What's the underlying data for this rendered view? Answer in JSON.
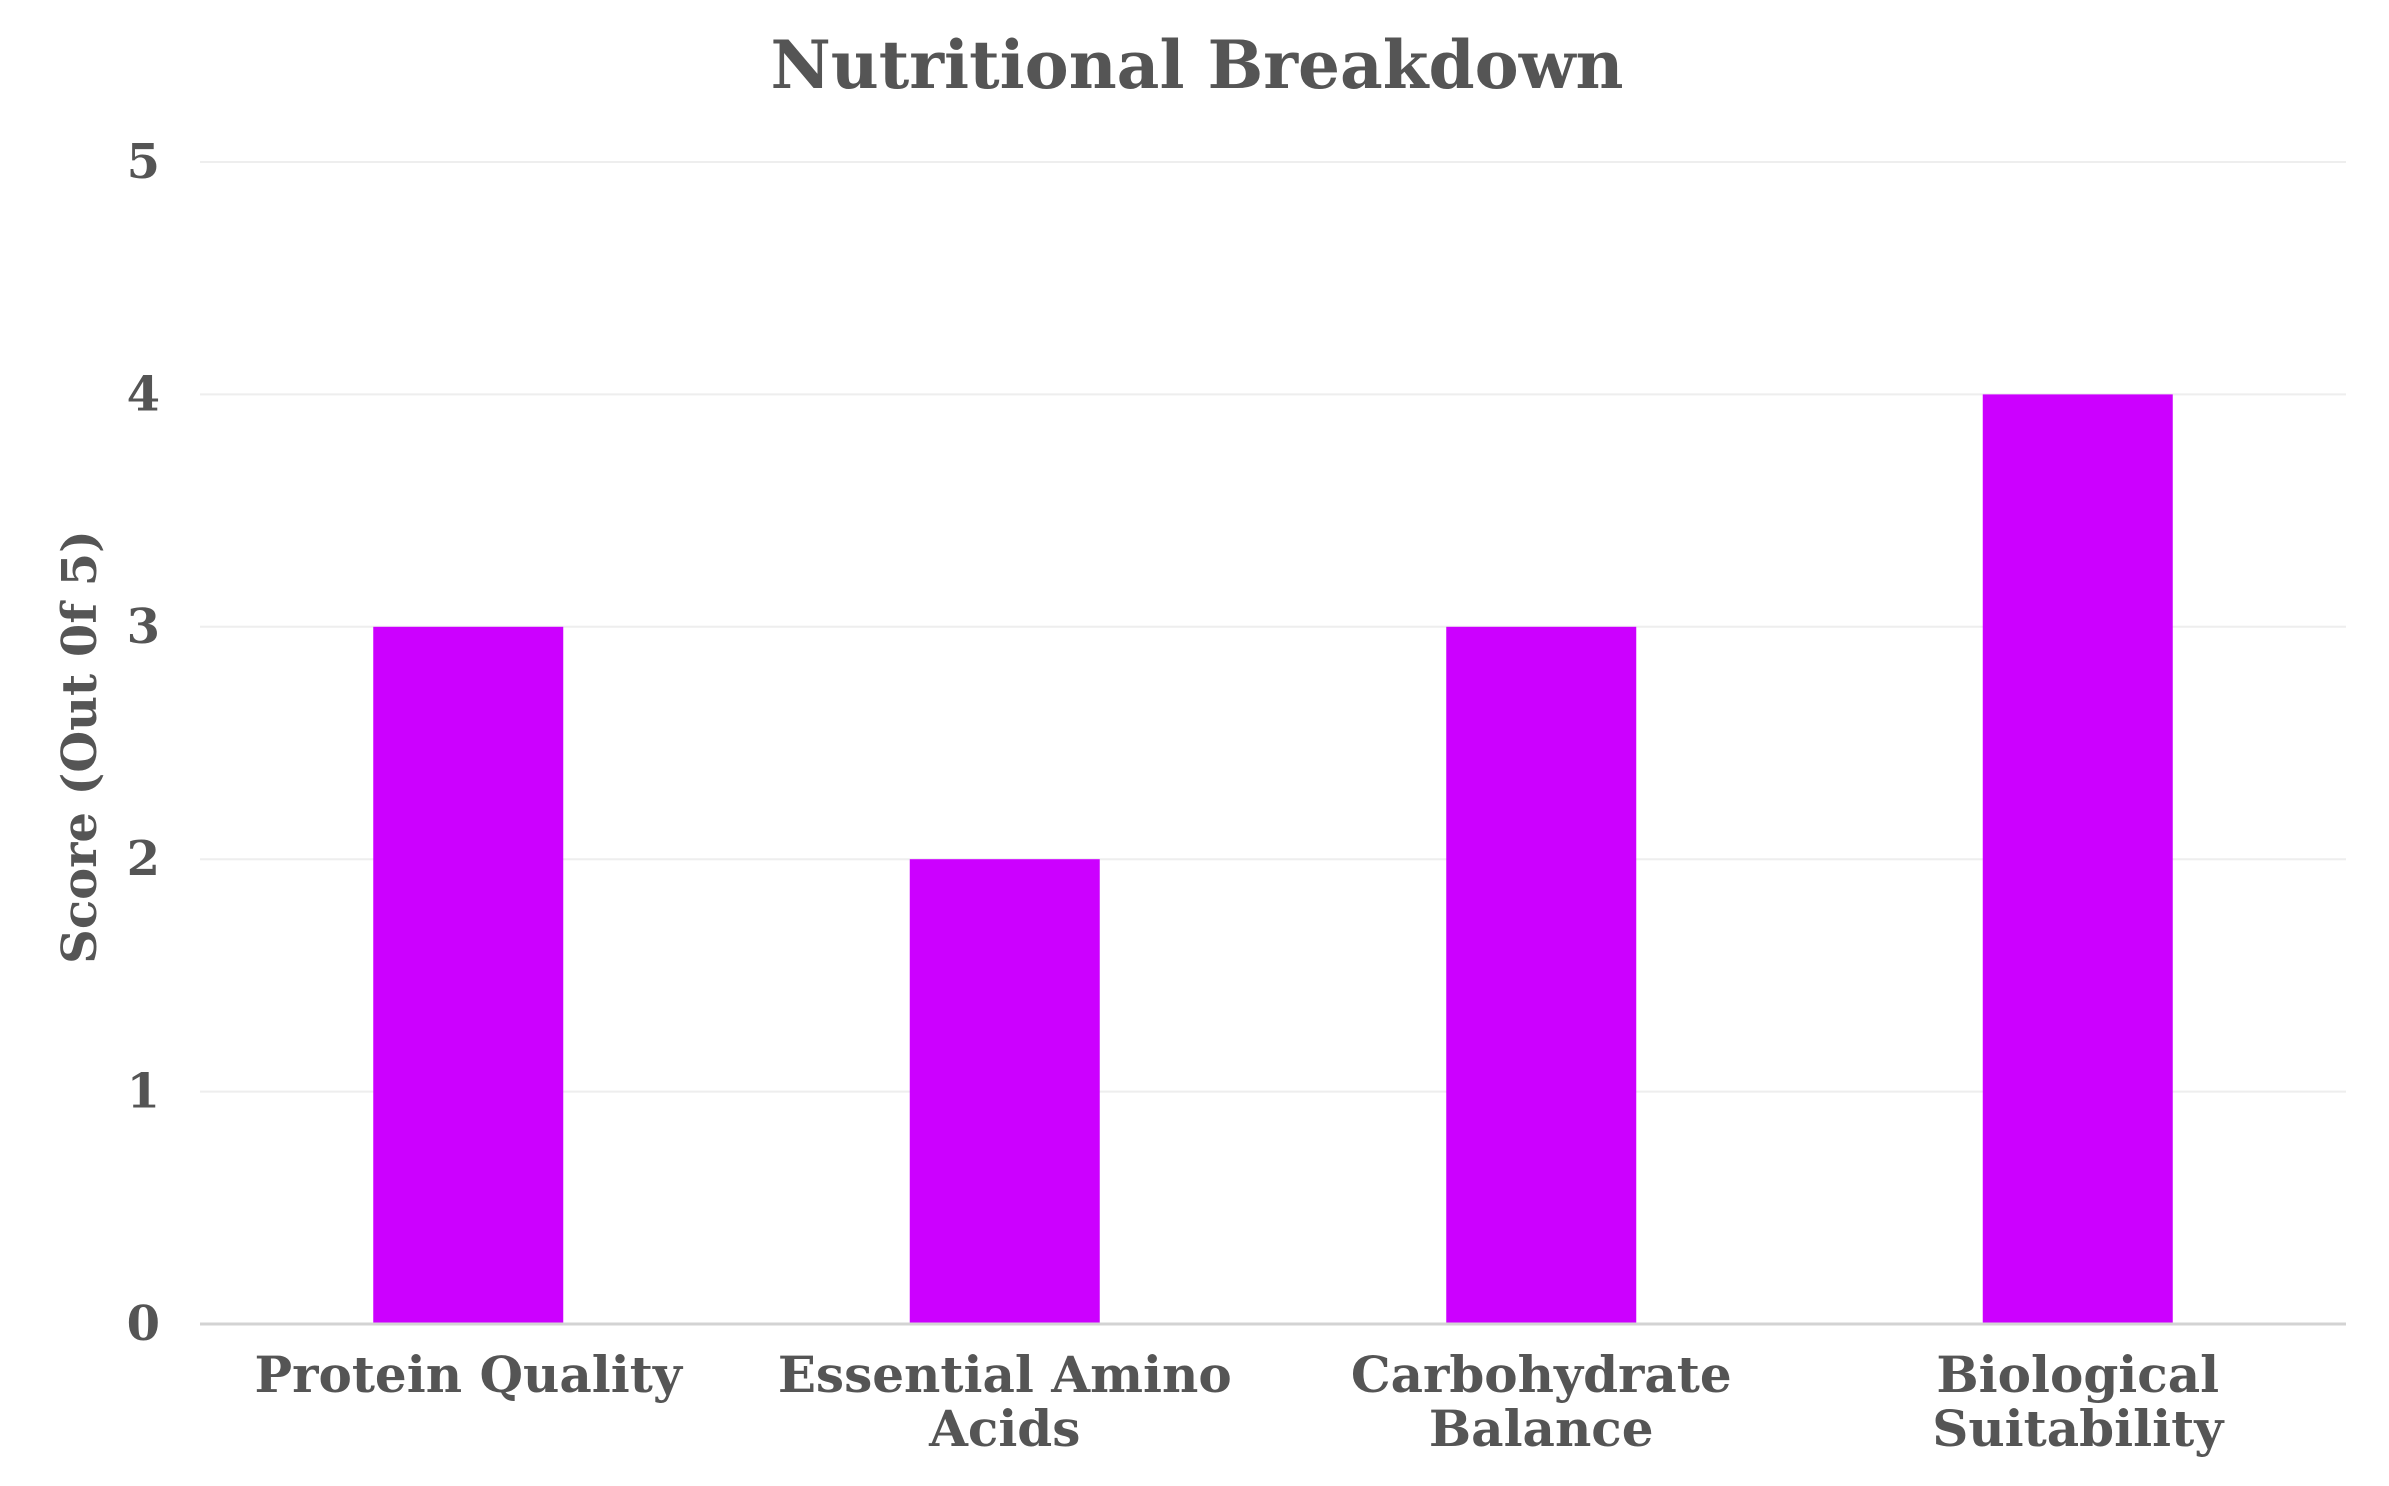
{
  "chart_data": {
    "type": "bar",
    "title": "Nutritional Breakdown",
    "xlabel": "",
    "ylabel": "Score (Out 0f 5)",
    "categories": [
      [
        "Protein Quality"
      ],
      [
        "Essential Amino",
        "Acids"
      ],
      [
        "Carbohydrate",
        "Balance"
      ],
      [
        "Biological",
        "Suitability"
      ]
    ],
    "series": [
      {
        "values": [
          3,
          2,
          3,
          4
        ],
        "color": "#cc00ff"
      }
    ],
    "ylim": [
      0,
      5
    ],
    "yticks": [
      "0",
      "1",
      "2",
      "3",
      "4",
      "5"
    ],
    "grid": true,
    "legend": "none"
  }
}
